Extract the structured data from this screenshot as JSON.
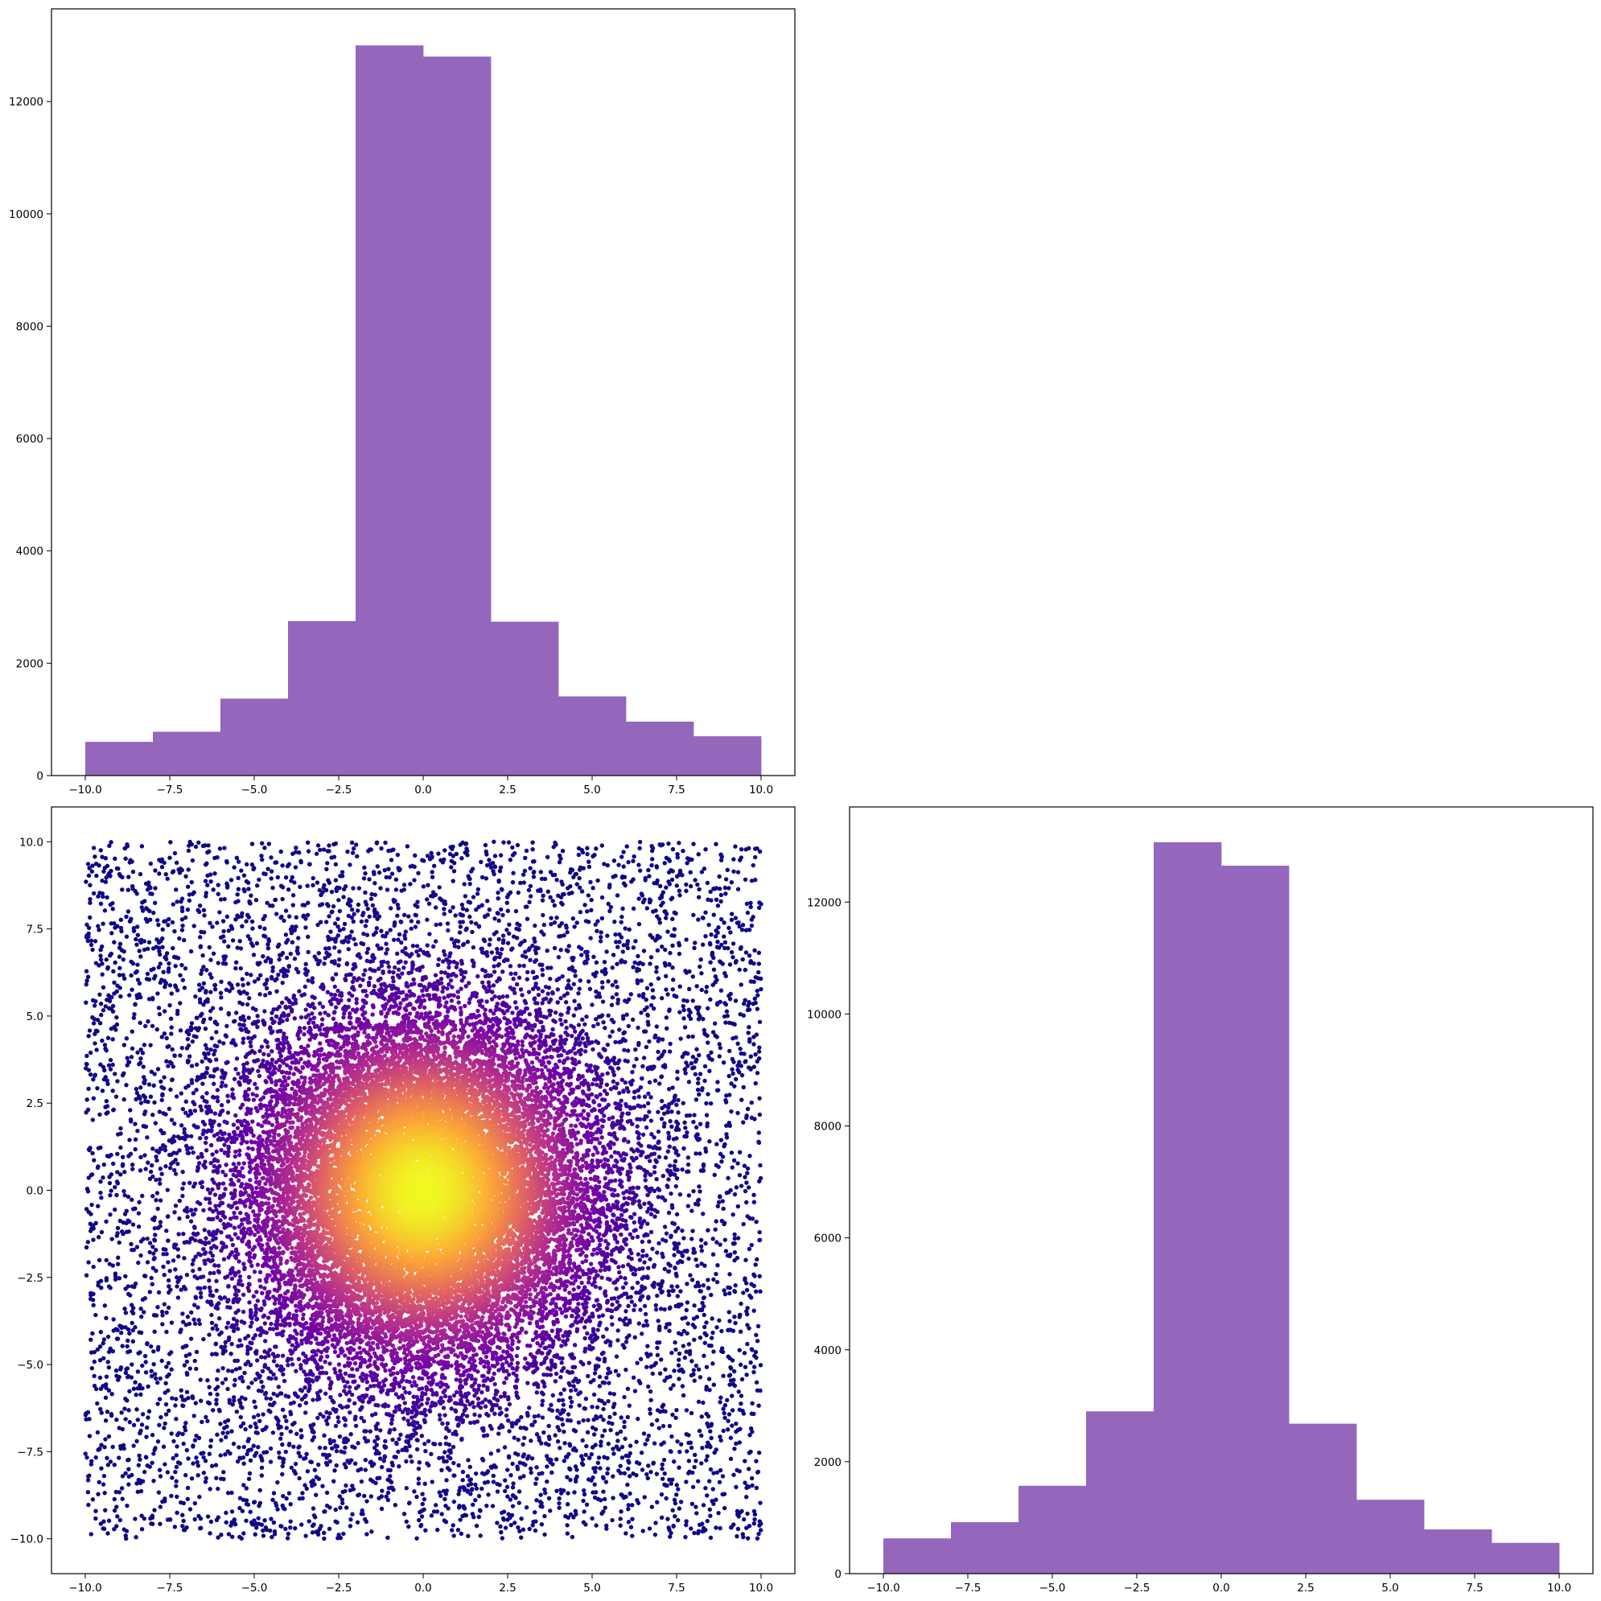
{
  "chart_data": [
    {
      "id": "top-left-histogram",
      "type": "bar",
      "bar_color": "#9467bd",
      "bin_edges": [
        -10,
        -8,
        -6,
        -4,
        -2,
        0,
        2,
        4,
        6,
        8,
        10
      ],
      "values": [
        600,
        780,
        1370,
        2750,
        13000,
        12800,
        2740,
        1410,
        960,
        700
      ],
      "xlim": [
        -11,
        11
      ],
      "ylim": [
        0,
        13650
      ],
      "xticks": [
        -10,
        -7.5,
        -5,
        -2.5,
        0,
        2.5,
        5,
        7.5,
        10
      ],
      "xtick_labels": [
        "−10.0",
        "−7.5",
        "−5.0",
        "−2.5",
        "0.0",
        "2.5",
        "5.0",
        "7.5",
        "10.0"
      ],
      "yticks": [
        0,
        2000,
        4000,
        6000,
        8000,
        10000,
        12000
      ],
      "ytick_labels": [
        "0",
        "2000",
        "4000",
        "6000",
        "8000",
        "10000",
        "12000"
      ],
      "title": "",
      "xlabel": "",
      "ylabel": ""
    },
    {
      "id": "bottom-left-scatter",
      "type": "scatter",
      "colormap": "plasma",
      "color_by": "density",
      "colors": [
        "#0d0887",
        "#6a00a8",
        "#b12a90",
        "#e16462",
        "#fca636",
        "#f0f921"
      ],
      "x_range": [
        -10,
        10
      ],
      "y_range": [
        -10,
        10
      ],
      "xlim": [
        -11,
        11
      ],
      "ylim": [
        -11,
        11
      ],
      "xticks": [
        -10,
        -7.5,
        -5,
        -2.5,
        0,
        2.5,
        5,
        7.5,
        10
      ],
      "xtick_labels": [
        "−10.0",
        "−7.5",
        "−5.0",
        "−2.5",
        "0.0",
        "2.5",
        "5.0",
        "7.5",
        "10.0"
      ],
      "yticks": [
        -10,
        -7.5,
        -5,
        -2.5,
        0,
        2.5,
        5,
        7.5,
        10
      ],
      "ytick_labels": [
        "−10.0",
        "−7.5",
        "−5.0",
        "−2.5",
        "0.0",
        "2.5",
        "5.0",
        "7.5",
        "10.0"
      ],
      "title": "",
      "xlabel": "",
      "ylabel": ""
    },
    {
      "id": "bottom-right-histogram",
      "type": "bar",
      "bar_color": "#9467bd",
      "bin_edges": [
        -10,
        -8,
        -6,
        -4,
        -2,
        0,
        2,
        4,
        6,
        8,
        10
      ],
      "values": [
        630,
        920,
        1570,
        2900,
        13070,
        12650,
        2680,
        1320,
        790,
        550
      ],
      "xlim": [
        -11,
        11
      ],
      "ylim": [
        0,
        13700
      ],
      "xticks": [
        -10,
        -7.5,
        -5,
        -2.5,
        0,
        2.5,
        5,
        7.5,
        10
      ],
      "xtick_labels": [
        "−10.0",
        "−7.5",
        "−5.0",
        "−2.5",
        "0.0",
        "2.5",
        "5.0",
        "7.5",
        "10.0"
      ],
      "yticks": [
        0,
        2000,
        4000,
        6000,
        8000,
        10000,
        12000
      ],
      "ytick_labels": [
        "0",
        "2000",
        "4000",
        "6000",
        "8000",
        "10000",
        "12000"
      ],
      "title": "",
      "xlabel": "",
      "ylabel": ""
    }
  ]
}
